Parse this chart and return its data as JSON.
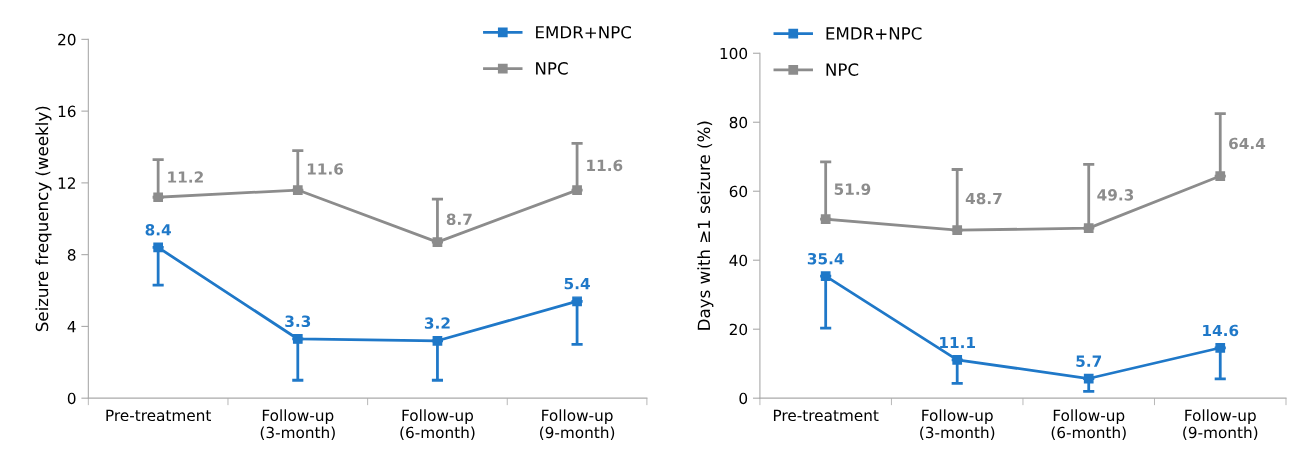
{
  "chart_data": [
    {
      "type": "line",
      "ylabel": "Seizure frequency (weekly)",
      "categories": [
        "Pre-treatment",
        "Follow-up\n(3-month)",
        "Follow-up\n(6-month)",
        "Follow-up\n(9-month)"
      ],
      "ylim": [
        0,
        20
      ],
      "yticks": [
        0,
        4,
        8,
        12,
        16,
        20
      ],
      "grid": false,
      "legend": "top right",
      "marker": "square",
      "line_style": "solid",
      "series": [
        {
          "name": "EMDR+NPC",
          "color": "#1f78c8",
          "values": [
            8.4,
            3.3,
            3.2,
            5.4
          ],
          "value_labels": [
            "8.4",
            "3.3",
            "3.2",
            "5.4"
          ],
          "errors": [
            [
              6.3,
              8.4
            ],
            [
              1.0,
              3.3
            ],
            [
              1.0,
              3.2
            ],
            [
              3.0,
              5.4
            ]
          ]
        },
        {
          "name": "NPC",
          "color": "#8c8c8c",
          "values": [
            11.2,
            11.6,
            8.7,
            11.6
          ],
          "value_labels": [
            "11.2",
            "11.6",
            "8.7",
            "11.6"
          ],
          "errors": [
            [
              11.2,
              13.3
            ],
            [
              11.6,
              13.8
            ],
            [
              8.7,
              11.1
            ],
            [
              11.6,
              14.2
            ]
          ]
        }
      ]
    },
    {
      "type": "line",
      "ylabel": "Days with ≥1 seizure (%)",
      "categories": [
        "Pre-treatment",
        "Follow-up\n(3-month)",
        "Follow-up\n(6-month)",
        "Follow-up\n(9-month)"
      ],
      "ylim": [
        0,
        100
      ],
      "yticks": [
        0,
        20,
        40,
        60,
        80,
        100
      ],
      "grid": false,
      "legend": "top left",
      "marker": "square",
      "line_style": "solid",
      "series": [
        {
          "name": "EMDR+NPC",
          "color": "#1f78c8",
          "values": [
            35.4,
            11.1,
            5.7,
            14.6
          ],
          "value_labels": [
            "35.4",
            "11.1",
            "5.7",
            "14.6"
          ],
          "errors": [
            [
              20.3,
              35.4
            ],
            [
              4.3,
              11.1
            ],
            [
              2.0,
              5.7
            ],
            [
              5.6,
              14.6
            ]
          ]
        },
        {
          "name": "NPC",
          "color": "#8c8c8c",
          "values": [
            51.9,
            48.7,
            49.3,
            64.4
          ],
          "value_labels": [
            "51.9",
            "48.7",
            "49.3",
            "64.4"
          ],
          "errors": [
            [
              51.9,
              68.5
            ],
            [
              48.7,
              66.3
            ],
            [
              49.3,
              67.8
            ],
            [
              64.4,
              82.5
            ]
          ]
        }
      ]
    }
  ]
}
